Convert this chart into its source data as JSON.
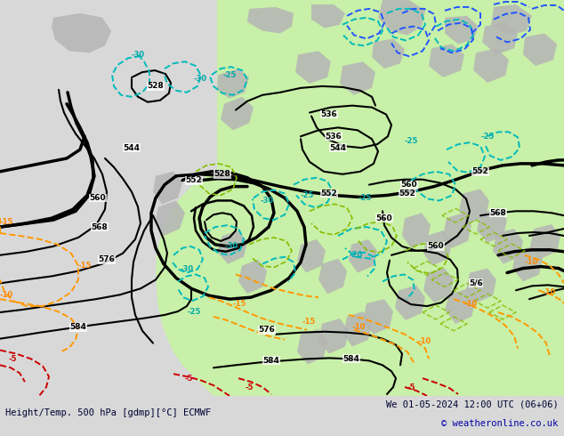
{
  "title_left": "Height/Temp. 500 hPa [gdmp][°C] ECMWF",
  "title_right": "We 01-05-2024 12:00 UTC (06+06)",
  "copyright": "© weatheronline.co.uk",
  "bg_color": "#d8d8d8",
  "map_bg": "#d8d8d8",
  "green_fill": "#c8f0a8",
  "gray_fill": "#b8b8b8",
  "figsize": [
    6.34,
    4.9
  ],
  "dpi": 100
}
